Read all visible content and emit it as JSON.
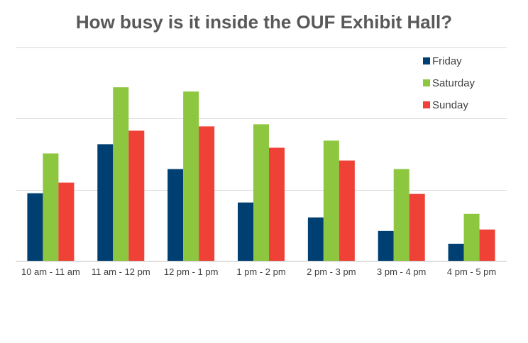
{
  "chart_data": {
    "type": "bar",
    "title": "How busy is it inside the OUF Exhibit Hall?",
    "categories": [
      "10 am - 11 am",
      "11 am - 12 pm",
      "12 pm - 1 pm",
      "1 pm - 2 pm",
      "2 pm - 3 pm",
      "3 pm - 4 pm",
      "4 pm - 5 pm"
    ],
    "series": [
      {
        "name": "Friday",
        "color": "#003F72",
        "values": [
          95,
          164,
          129,
          82,
          61,
          42,
          24
        ]
      },
      {
        "name": "Saturday",
        "color": "#8DC63F",
        "values": [
          151,
          244,
          238,
          192,
          169,
          129,
          66
        ]
      },
      {
        "name": "Sunday",
        "color": "#EF4136",
        "values": [
          110,
          183,
          189,
          159,
          141,
          94,
          44
        ]
      }
    ],
    "ylim": [
      0,
      300
    ],
    "gridlines": [
      0,
      100,
      200,
      300
    ],
    "y_tick_labels_shown": false,
    "grid": true,
    "legend_position": "top-right"
  }
}
